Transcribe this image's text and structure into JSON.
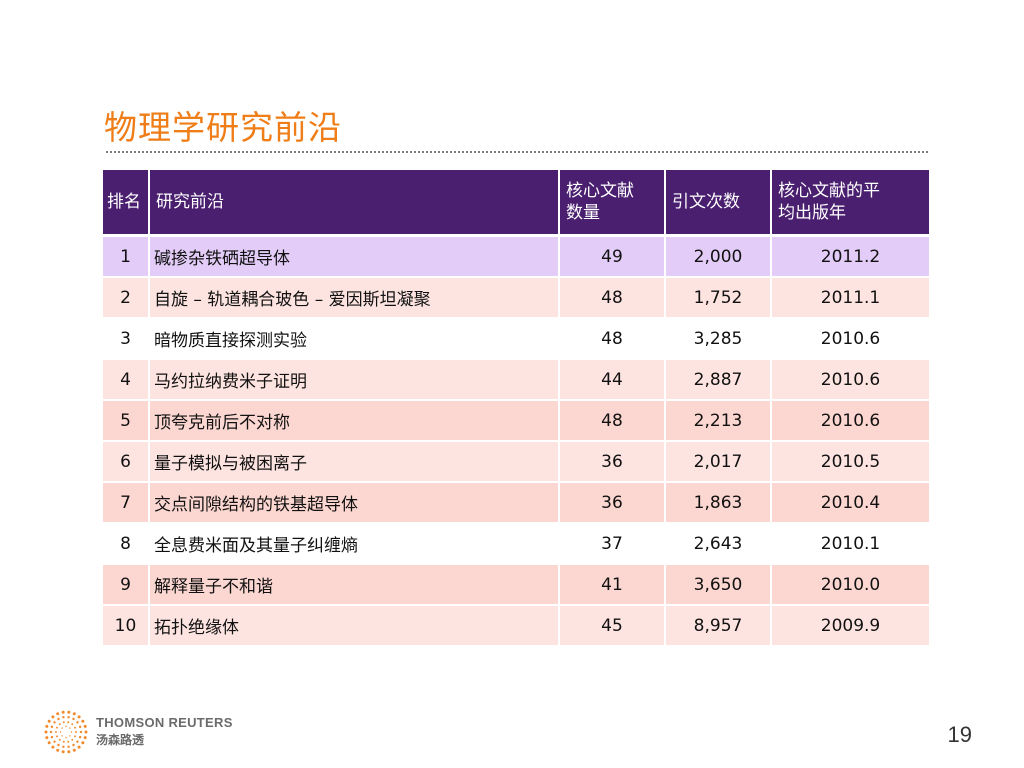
{
  "slide": {
    "title": "物理学研究前沿",
    "page_number": "19"
  },
  "table": {
    "headers": {
      "rank": "排名",
      "front": "研究前沿",
      "core_papers": "核心文献数量",
      "citations": "引文次数",
      "avg_year": "核心文献的平均出版年"
    },
    "rows": [
      {
        "rank": "1",
        "front": "碱掺杂铁硒超导体",
        "core": "49",
        "cites": "2,000",
        "year": "2011.2",
        "bg": "#e3cdf8"
      },
      {
        "rank": "2",
        "front": "自旋 – 轨道耦合玻色 – 爱因斯坦凝聚",
        "core": "48",
        "cites": "1,752",
        "year": "2011.1",
        "bg": "#fde4e1"
      },
      {
        "rank": "3",
        "front": "暗物质直接探测实验",
        "core": "48",
        "cites": "3,285",
        "year": "2010.6",
        "bg": "#ffffff"
      },
      {
        "rank": "4",
        "front": "马约拉纳费米子证明",
        "core": "44",
        "cites": "2,887",
        "year": "2010.6",
        "bg": "#fde4e1"
      },
      {
        "rank": "5",
        "front": "顶夸克前后不对称",
        "core": "48",
        "cites": "2,213",
        "year": "2010.6",
        "bg": "#fcd6d0"
      },
      {
        "rank": "6",
        "front": "量子模拟与被困离子",
        "core": "36",
        "cites": "2,017",
        "year": "2010.5",
        "bg": "#fde4e1"
      },
      {
        "rank": "7",
        "front": "交点间隙结构的铁基超导体",
        "core": "36",
        "cites": "1,863",
        "year": "2010.4",
        "bg": "#fcd6d0"
      },
      {
        "rank": "8",
        "front": "全息费米面及其量子纠缠熵",
        "core": "37",
        "cites": "2,643",
        "year": "2010.1",
        "bg": "#ffffff"
      },
      {
        "rank": "9",
        "front": "解释量子不和谐",
        "core": "41",
        "cites": "3,650",
        "year": "2010.0",
        "bg": "#fcd6d0"
      },
      {
        "rank": "10",
        "front": "拓扑绝缘体",
        "core": "45",
        "cites": "8,957",
        "year": "2009.9",
        "bg": "#fde4e1"
      }
    ]
  },
  "footer": {
    "brand_en": "THOMSON REUTERS",
    "brand_cn": "汤森路透",
    "logo_icon": "thomson-reuters-dot-ring-logo",
    "logo_color": "#ef7d18"
  },
  "colors": {
    "title": "#ef7d18",
    "header_bg": "#4b1f6f"
  }
}
